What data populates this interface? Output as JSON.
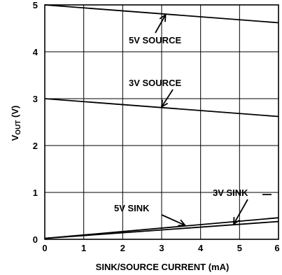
{
  "chart_data": {
    "type": "line",
    "title": "",
    "xlabel": "SINK/SOURCE CURRENT (mA)",
    "ylabel_main": "V",
    "ylabel_sub": "OUT",
    "ylabel_unit": " (V)",
    "xlim": [
      0,
      6
    ],
    "ylim": [
      0,
      5
    ],
    "x_ticks": [
      "0",
      "1",
      "2",
      "3",
      "4",
      "5",
      "6"
    ],
    "y_ticks": [
      "0",
      "1",
      "2",
      "3",
      "4",
      "5"
    ],
    "grid": true,
    "series": [
      {
        "name": "5V SOURCE",
        "x": [
          0,
          6
        ],
        "y": [
          5.0,
          4.62
        ]
      },
      {
        "name": "3V SOURCE",
        "x": [
          0,
          6
        ],
        "y": [
          3.0,
          2.62
        ]
      },
      {
        "name": "5V SINK",
        "x": [
          0,
          6
        ],
        "y": [
          0.02,
          0.46
        ]
      },
      {
        "name": "3V SINK",
        "x": [
          0,
          6
        ],
        "y": [
          0.02,
          0.38
        ]
      }
    ]
  }
}
